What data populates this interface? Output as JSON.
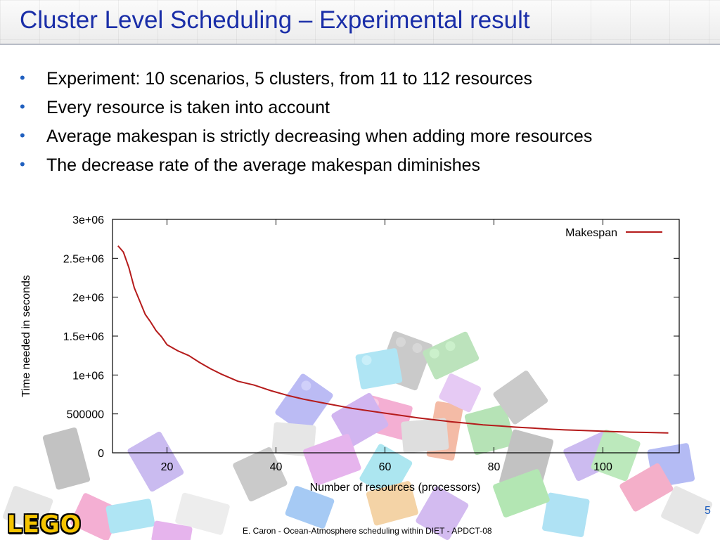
{
  "slide": {
    "title": "Cluster Level Scheduling – Experimental result",
    "bullets": [
      "Experiment: 10 scenarios, 5 clusters, from 11 to 112 resources",
      "Every resource is taken into account",
      "Average makespan is strictly decreasing when adding more resources",
      "The decrease rate of the average makespan diminishes"
    ],
    "bullet_glyph": "•",
    "logo_text": "LEGO",
    "footer": "E. Caron - Ocean-Atmosphere scheduling within DIET - APDCT-08",
    "page_number": "5"
  },
  "colors": {
    "title": "#1a2ea8",
    "bullet": "#1f5fbf",
    "series": "#b51b1b",
    "logo": "#f5c400"
  },
  "chart_data": {
    "type": "line",
    "xlabel": "Number of resources (processors)",
    "ylabel": "Time needed in seconds",
    "xlim": [
      10,
      114
    ],
    "ylim": [
      0,
      3000000
    ],
    "x_ticks": [
      20,
      40,
      60,
      80,
      100
    ],
    "x_tick_labels": [
      "20",
      "40",
      "60",
      "80",
      "100"
    ],
    "y_ticks": [
      0,
      500000,
      1000000,
      1500000,
      2000000,
      2500000,
      3000000
    ],
    "y_tick_labels": [
      "0",
      "500000",
      "1e+06",
      "1.5e+06",
      "2e+06",
      "2.5e+06",
      "3e+06"
    ],
    "grid": false,
    "legend_position": "top-right",
    "series": [
      {
        "name": "Makespan",
        "color": "#b51b1b",
        "x": [
          11,
          12,
          13,
          14,
          15,
          16,
          17,
          18,
          19,
          20,
          22,
          24,
          26,
          28,
          30,
          33,
          36,
          39,
          42,
          45,
          48,
          51,
          54,
          57,
          60,
          63,
          66,
          69,
          72,
          75,
          78,
          81,
          84,
          87,
          90,
          93,
          96,
          99,
          102,
          105,
          108,
          112
        ],
        "y": [
          2660000,
          2580000,
          2380000,
          2120000,
          1950000,
          1780000,
          1680000,
          1570000,
          1490000,
          1390000,
          1310000,
          1250000,
          1160000,
          1080000,
          1010000,
          920000,
          870000,
          800000,
          740000,
          690000,
          650000,
          610000,
          570000,
          540000,
          510000,
          480000,
          450000,
          425000,
          400000,
          380000,
          360000,
          345000,
          330000,
          318000,
          305000,
          295000,
          288000,
          280000,
          272000,
          266000,
          262000,
          255000
        ]
      }
    ]
  }
}
